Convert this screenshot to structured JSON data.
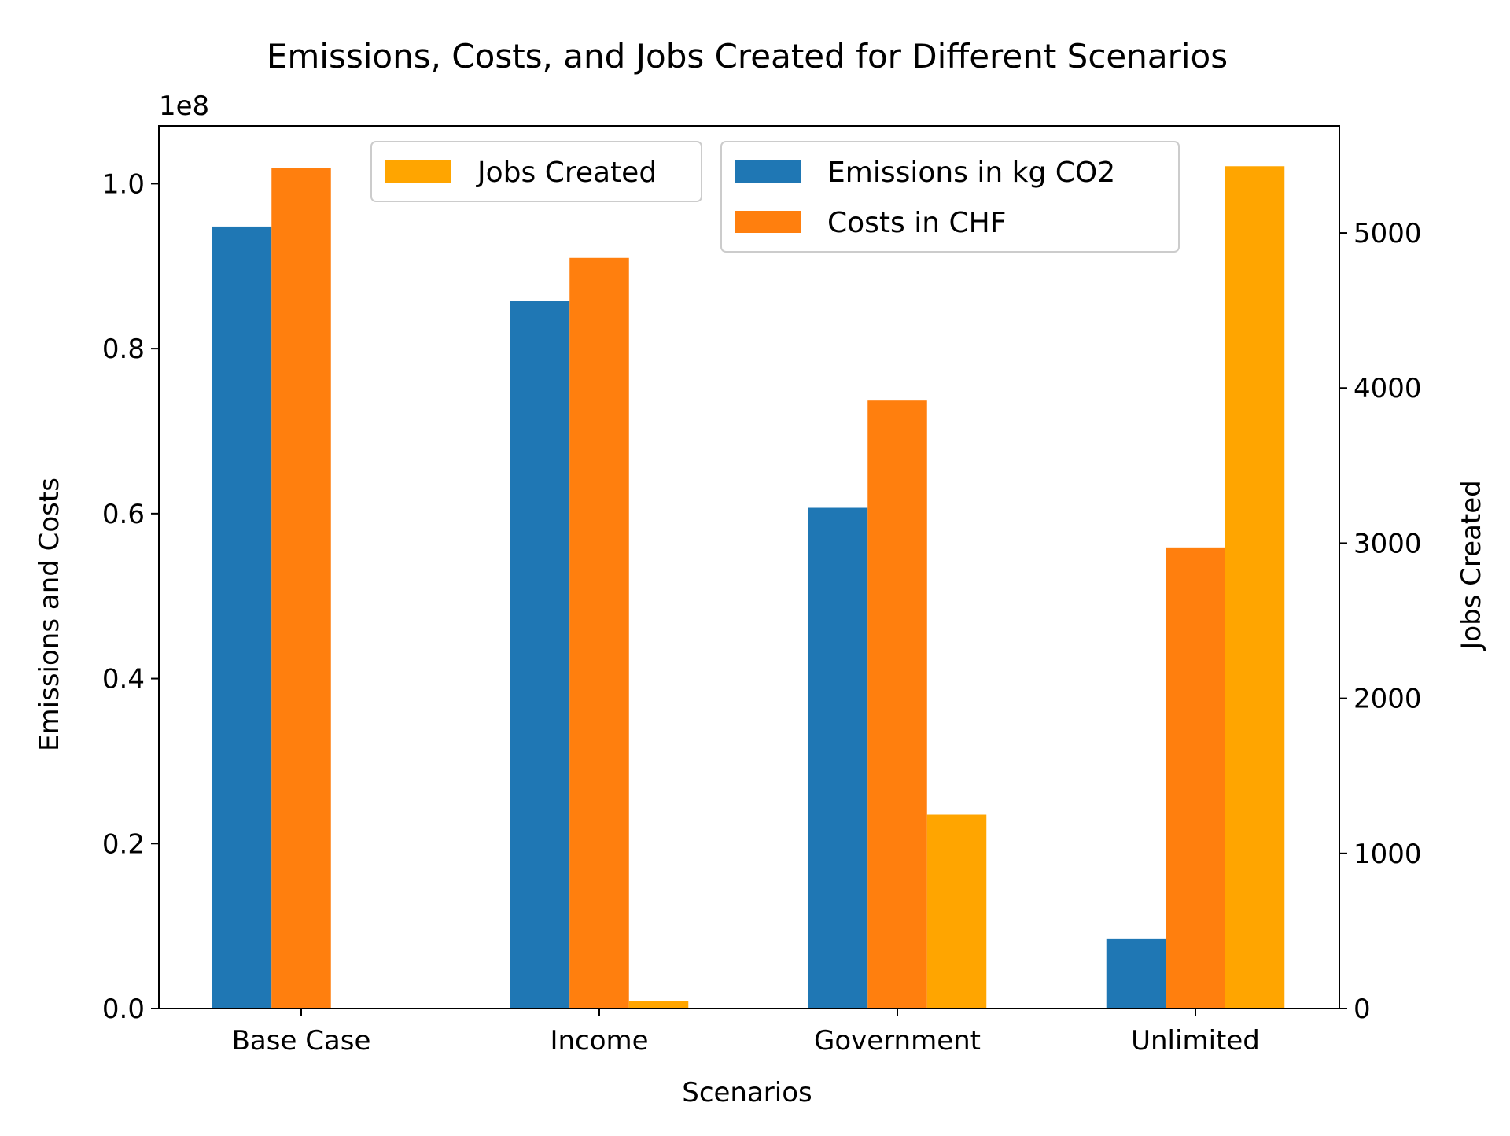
{
  "chart_data": {
    "type": "bar",
    "title": "Emissions, Costs, and Jobs Created for Different Scenarios",
    "xlabel": "Scenarios",
    "ylabel": "Emissions and Costs",
    "y2label": "Jobs Created",
    "y_offset_label": "1e8",
    "categories": [
      "Base Case",
      "Income",
      "Government",
      "Unlimited"
    ],
    "ylim": [
      0,
      107000000
    ],
    "y2lim": [
      0,
      5690
    ],
    "yticks": [
      0,
      20000000,
      40000000,
      60000000,
      80000000,
      100000000
    ],
    "ytick_labels": [
      "0.0",
      "0.2",
      "0.4",
      "0.6",
      "0.8",
      "1.0"
    ],
    "y2ticks": [
      0,
      1000,
      2000,
      3000,
      4000,
      5000
    ],
    "y2tick_labels": [
      "0",
      "1000",
      "2000",
      "3000",
      "4000",
      "5000"
    ],
    "series": [
      {
        "name": "Emissions in kg CO2",
        "axis": "left",
        "color": "#1f77b4",
        "values": [
          94800000,
          85800000,
          60700000,
          8500000
        ]
      },
      {
        "name": "Costs in CHF",
        "axis": "left",
        "color": "#ff7f0e",
        "values": [
          101900000,
          91000000,
          73700000,
          55900000
        ]
      },
      {
        "name": "Jobs Created",
        "axis": "right",
        "color": "#ffa500",
        "values": [
          0,
          50,
          1250,
          5430
        ]
      }
    ],
    "legends": [
      {
        "placement": "upper-center",
        "entries": [
          "Jobs Created"
        ]
      },
      {
        "placement": "upper-right",
        "entries": [
          "Emissions in kg CO2",
          "Costs in CHF"
        ]
      }
    ],
    "grid": false
  }
}
